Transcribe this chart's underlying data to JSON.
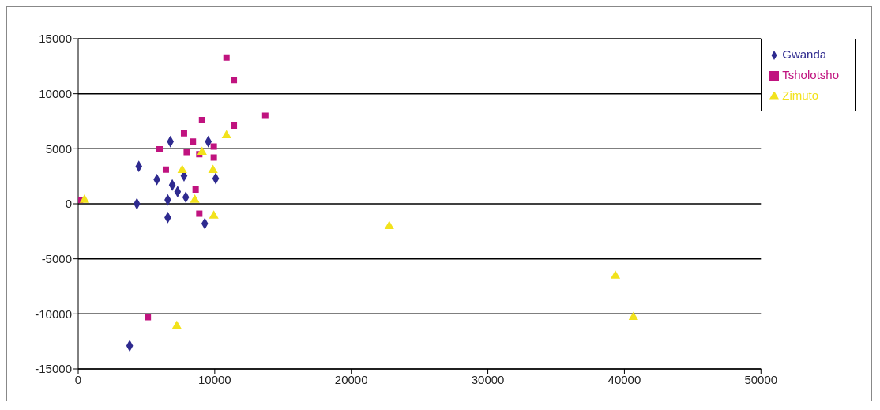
{
  "chart_data": {
    "type": "scatter",
    "xlim": [
      0,
      50000
    ],
    "xticks": [
      0,
      10000,
      20000,
      30000,
      40000,
      50000
    ],
    "ylim": [
      -15000,
      15000
    ],
    "yticks": [
      -15000,
      -10000,
      -5000,
      0,
      5000,
      10000,
      15000
    ],
    "grid": "y",
    "legend": "top right",
    "series": [
      {
        "name": "Gwanda",
        "color": "#2e2a8f",
        "marker": "diamond",
        "x": [
          6750,
          9530,
          4440,
          5760,
          6890,
          7280,
          7880,
          6560,
          4300,
          6560,
          10070,
          9270,
          7750,
          3770
        ],
        "values": [
          5650,
          5650,
          3400,
          2200,
          1700,
          1100,
          600,
          350,
          0,
          -1250,
          2300,
          -1800,
          2550,
          -12900
        ]
      },
      {
        "name": "Tsholotsho",
        "color": "#c0137f",
        "marker": "square",
        "x": [
          10860,
          11400,
          13700,
          11400,
          9070,
          7750,
          8400,
          5960,
          9930,
          8870,
          7950,
          6420,
          9930,
          8600,
          8870,
          130,
          5100
        ],
        "values": [
          13300,
          11250,
          8000,
          7100,
          7600,
          6400,
          5650,
          4950,
          5200,
          4500,
          4700,
          3100,
          4200,
          1300,
          -900,
          350,
          -10300
        ]
      },
      {
        "name": "Zimuto",
        "color": "#f2e21c",
        "marker": "triangle",
        "x": [
          460,
          10860,
          9070,
          9870,
          7620,
          8540,
          9930,
          22780,
          39340,
          40660,
          7220
        ],
        "values": [
          350,
          6200,
          4700,
          3050,
          3050,
          350,
          -1100,
          -2050,
          -6550,
          -10300,
          -11100
        ]
      }
    ]
  }
}
